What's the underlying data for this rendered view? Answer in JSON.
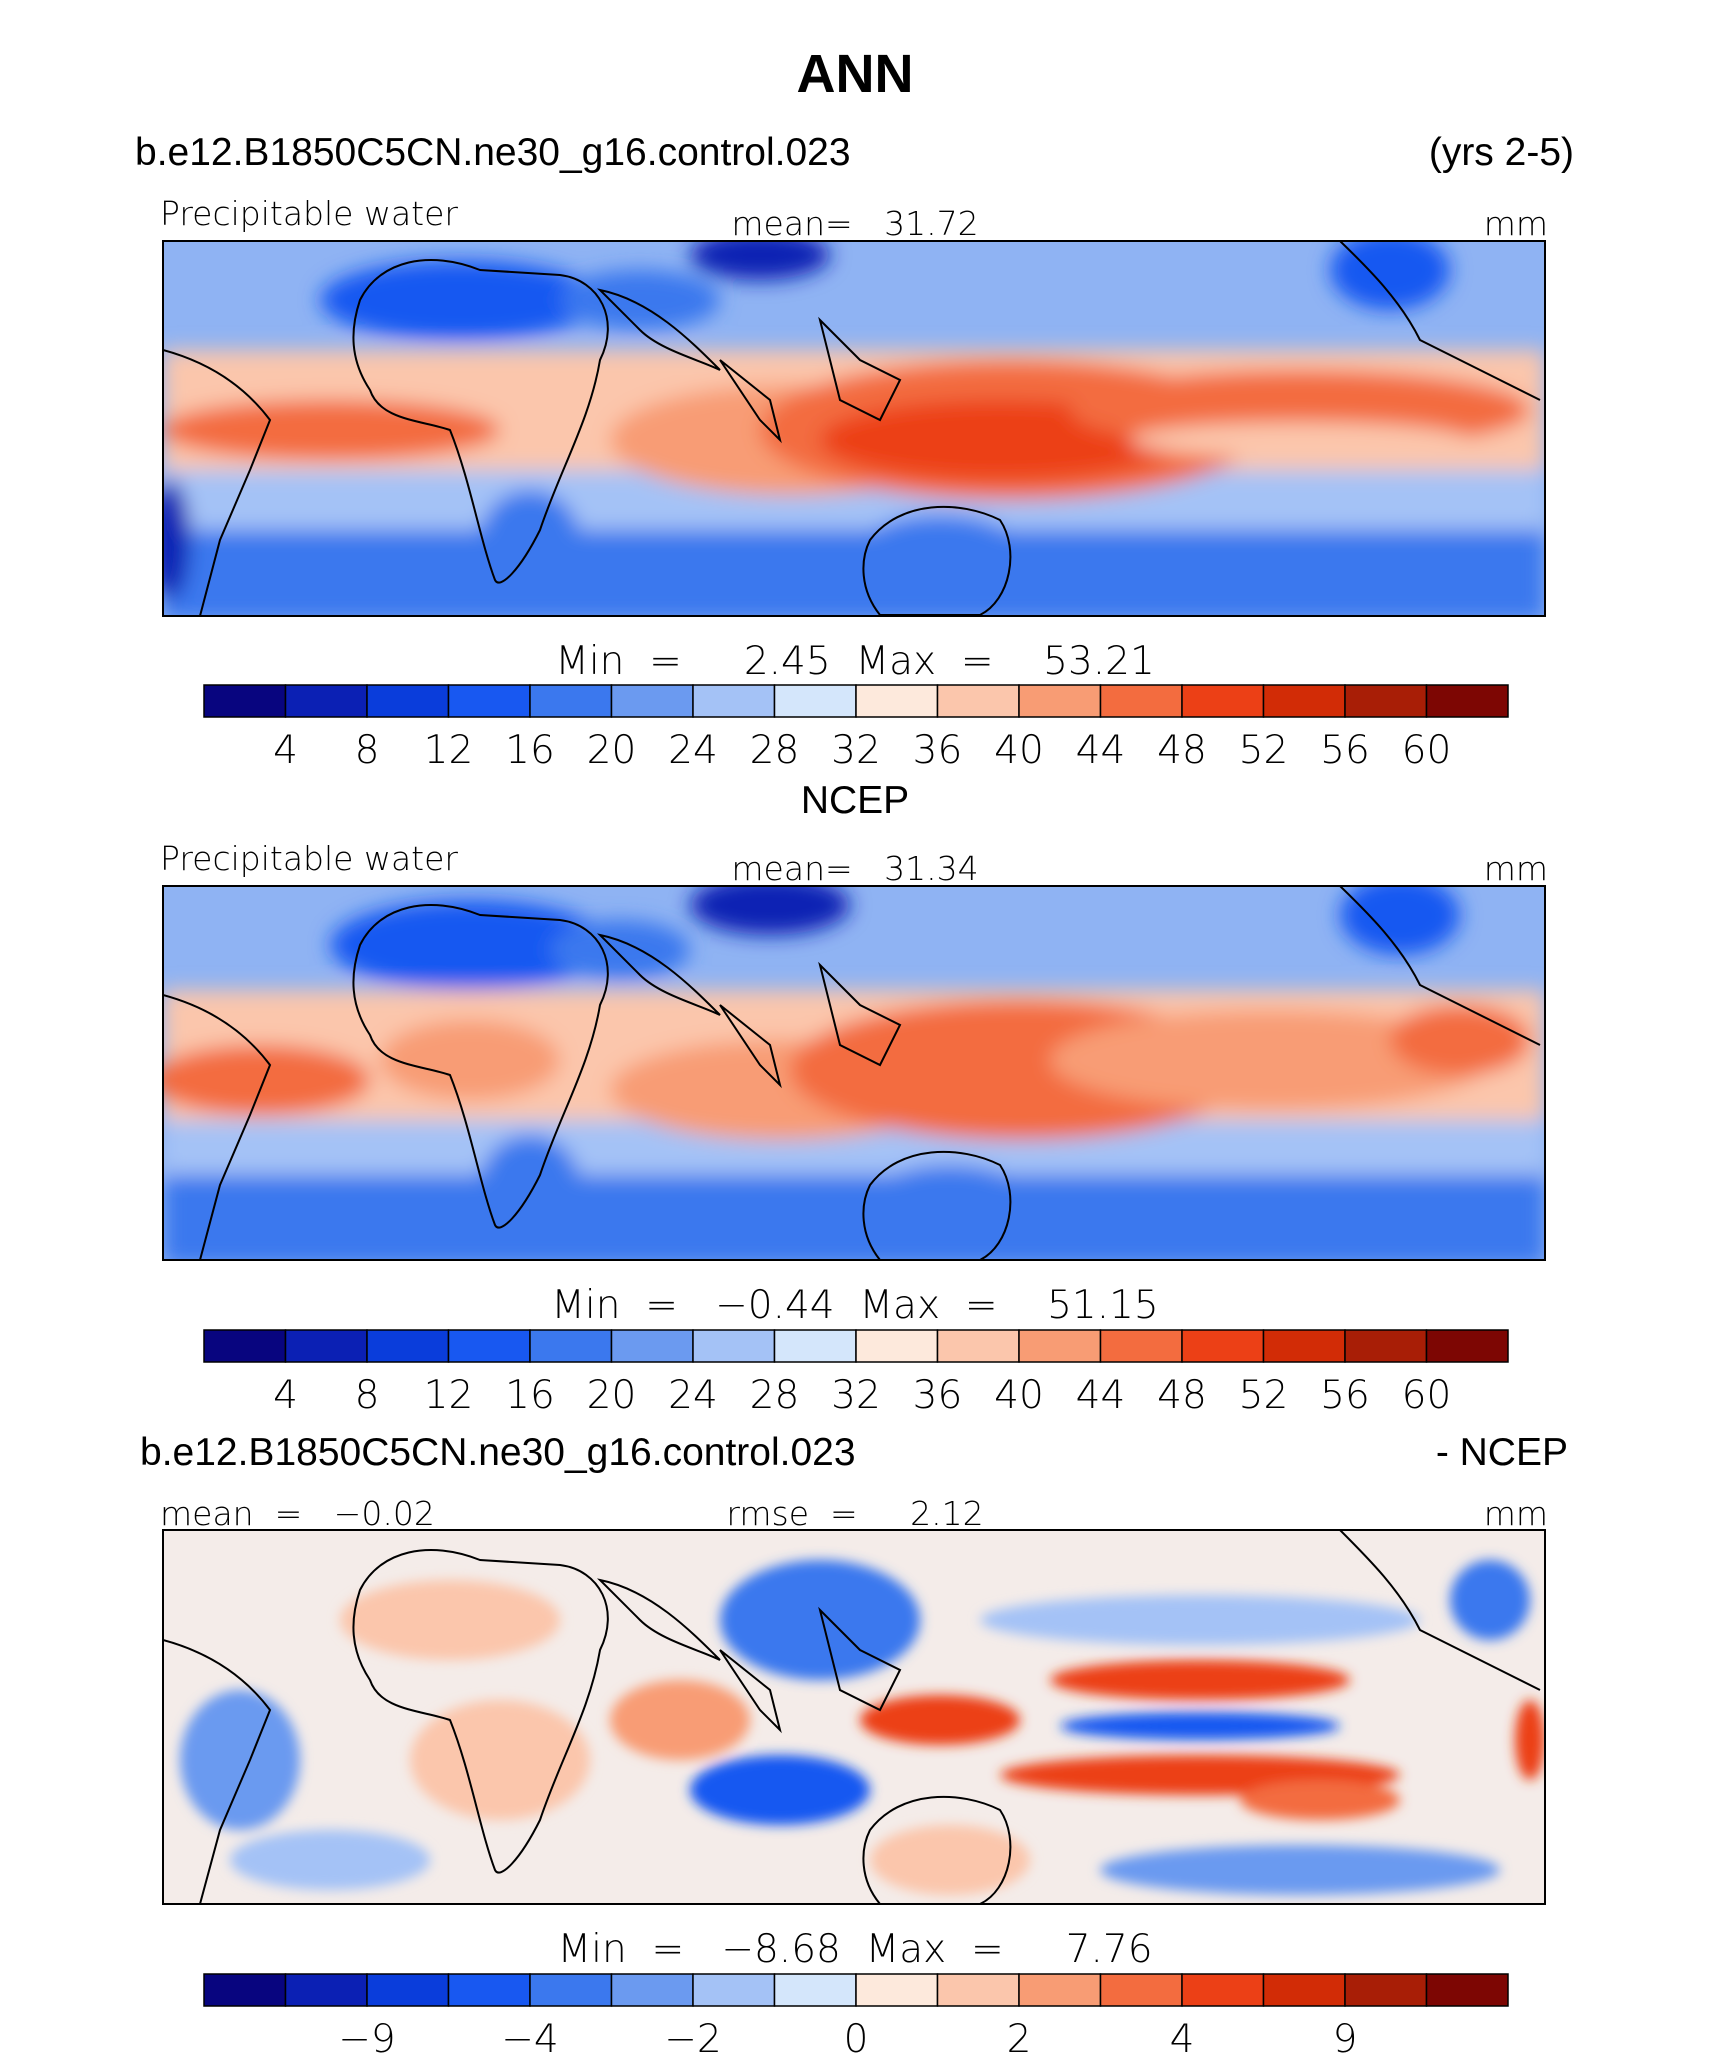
{
  "title": "ANN",
  "icons": {
    "maps": "world-map-icon"
  },
  "chart_data": [
    {
      "type": "heatmap",
      "title": "b.e12.B1850C5CN.ne30_g16.control.023",
      "period": "(yrs 2-5)",
      "variable": "Precipitable water",
      "units": "mm",
      "stat_left": "Precipitable water",
      "stat_center": "mean=   31.72",
      "mean": 31.72,
      "min": 2.45,
      "max": 53.21,
      "minmax_label": "Min  =     2.45  Max  =    53.21",
      "colorbar": {
        "levels": [
          4,
          8,
          12,
          16,
          20,
          24,
          28,
          32,
          36,
          40,
          44,
          48,
          52,
          56,
          60
        ],
        "tick_labels": [
          "4",
          "8",
          "12",
          "16",
          "20",
          "24",
          "28",
          "32",
          "36",
          "40",
          "44",
          "48",
          "52",
          "56",
          "60"
        ]
      }
    },
    {
      "type": "heatmap",
      "title": "NCEP",
      "variable": "Precipitable water",
      "units": "mm",
      "stat_left": "Precipitable water",
      "stat_center": "mean=   31.34",
      "mean": 31.34,
      "min": -0.44,
      "max": 51.15,
      "minmax_label": "Min  =   −0.44  Max  =    51.15",
      "colorbar": {
        "levels": [
          4,
          8,
          12,
          16,
          20,
          24,
          28,
          32,
          36,
          40,
          44,
          48,
          52,
          56,
          60
        ],
        "tick_labels": [
          "4",
          "8",
          "12",
          "16",
          "20",
          "24",
          "28",
          "32",
          "36",
          "40",
          "44",
          "48",
          "52",
          "56",
          "60"
        ]
      }
    },
    {
      "type": "heatmap",
      "title": "b.e12.B1850C5CN.ne30_g16.control.023",
      "period": "- NCEP",
      "units": "mm",
      "stat_left": "mean  =   −0.02",
      "stat_center": "rmse  =     2.12",
      "mean": -0.02,
      "rmse": 2.12,
      "min": -8.68,
      "max": 7.76,
      "minmax_label": "Min  =   −8.68  Max  =     7.76",
      "colorbar": {
        "levels": [
          -9,
          -4,
          -2,
          0,
          2,
          4,
          9
        ],
        "tick_labels": [
          "−9",
          "−4",
          "−2",
          "0",
          "2",
          "4",
          "9"
        ]
      }
    }
  ],
  "palette": [
    "#08057f",
    "#0b20b4",
    "#0a3ddb",
    "#1858f1",
    "#3b78ee",
    "#6b9af0",
    "#a4c2f6",
    "#d4e6fb",
    "#fde9dc",
    "#fbc6ac",
    "#f89c74",
    "#f36c3f",
    "#ec4016",
    "#d22c06",
    "#a81e06",
    "#7d0603"
  ]
}
